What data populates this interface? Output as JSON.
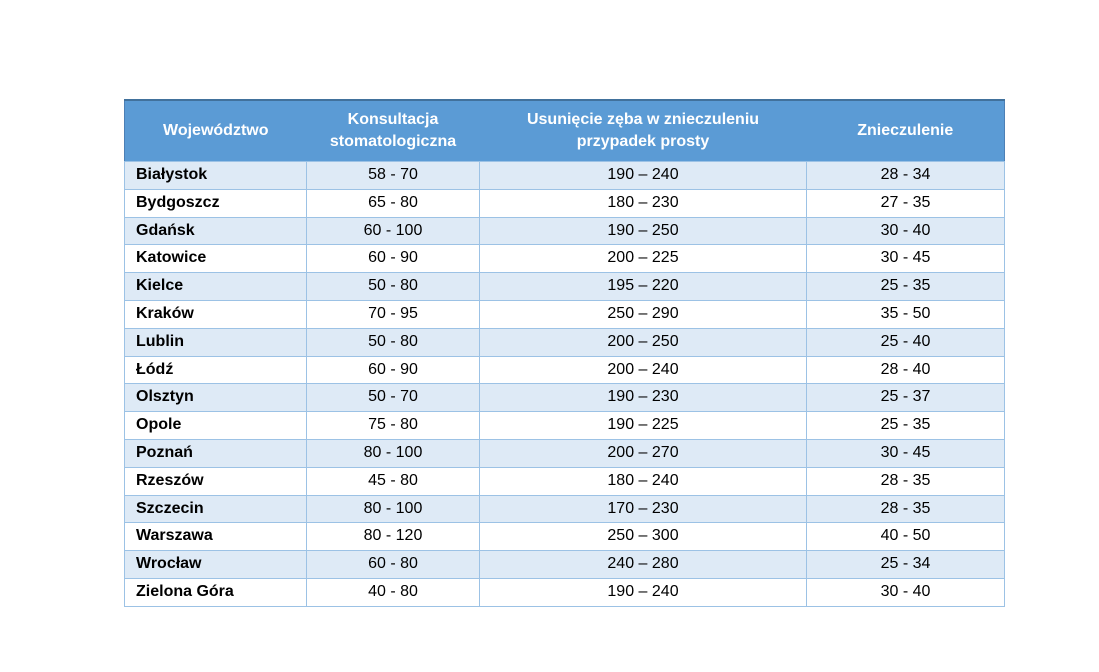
{
  "table": {
    "columns": [
      {
        "id": "region",
        "lines": [
          "Województwo"
        ]
      },
      {
        "id": "consultation",
        "lines": [
          "Konsultacja",
          "stomatologiczna"
        ]
      },
      {
        "id": "extraction",
        "lines": [
          "Usunięcie zęba w znieczuleniu",
          "przypadek prosty"
        ]
      },
      {
        "id": "anesthesia",
        "lines": [
          "Znieczulenie"
        ]
      }
    ],
    "rows": [
      {
        "region": "Białystok",
        "consultation": "58 - 70",
        "extraction": "190 – 240",
        "anesthesia": "28 - 34"
      },
      {
        "region": "Bydgoszcz",
        "consultation": "65 - 80",
        "extraction": "180 – 230",
        "anesthesia": "27 - 35"
      },
      {
        "region": "Gdańsk",
        "consultation": "60 - 100",
        "extraction": "190 – 250",
        "anesthesia": "30 - 40"
      },
      {
        "region": "Katowice",
        "consultation": "60 - 90",
        "extraction": "200 – 225",
        "anesthesia": "30 - 45"
      },
      {
        "region": "Kielce",
        "consultation": "50 - 80",
        "extraction": "195 – 220",
        "anesthesia": "25 - 35"
      },
      {
        "region": "Kraków",
        "consultation": "70 - 95",
        "extraction": "250 – 290",
        "anesthesia": "35 - 50"
      },
      {
        "region": "Lublin",
        "consultation": "50 - 80",
        "extraction": "200 – 250",
        "anesthesia": "25 - 40"
      },
      {
        "region": "Łódź",
        "consultation": "60 - 90",
        "extraction": "200 – 240",
        "anesthesia": "28 - 40"
      },
      {
        "region": "Olsztyn",
        "consultation": "50 - 70",
        "extraction": "190 – 230",
        "anesthesia": "25 - 37"
      },
      {
        "region": "Opole",
        "consultation": "75 - 80",
        "extraction": "190 – 225",
        "anesthesia": "25 - 35"
      },
      {
        "region": "Poznań",
        "consultation": "80 - 100",
        "extraction": "200 – 270",
        "anesthesia": "30 - 45"
      },
      {
        "region": "Rzeszów",
        "consultation": "45 - 80",
        "extraction": "180 – 240",
        "anesthesia": "28 - 35"
      },
      {
        "region": "Szczecin",
        "consultation": "80 - 100",
        "extraction": "170 – 230",
        "anesthesia": "28 - 35"
      },
      {
        "region": "Warszawa",
        "consultation": "80 - 120",
        "extraction": "250 – 300",
        "anesthesia": "40 - 50"
      },
      {
        "region": "Wrocław",
        "consultation": "60 - 80",
        "extraction": "240 – 280",
        "anesthesia": "25 - 34"
      },
      {
        "region": "Zielona Góra",
        "consultation": "40 - 80",
        "extraction": "190 – 240",
        "anesthesia": "30 - 40"
      }
    ],
    "colors": {
      "header_bg": "#5B9BD5",
      "header_text": "#FFFFFF",
      "row_alt_bg": "#DEEAF6",
      "row_bg": "#FFFFFF",
      "border": "#9CC2E5",
      "text": "#000000"
    }
  }
}
